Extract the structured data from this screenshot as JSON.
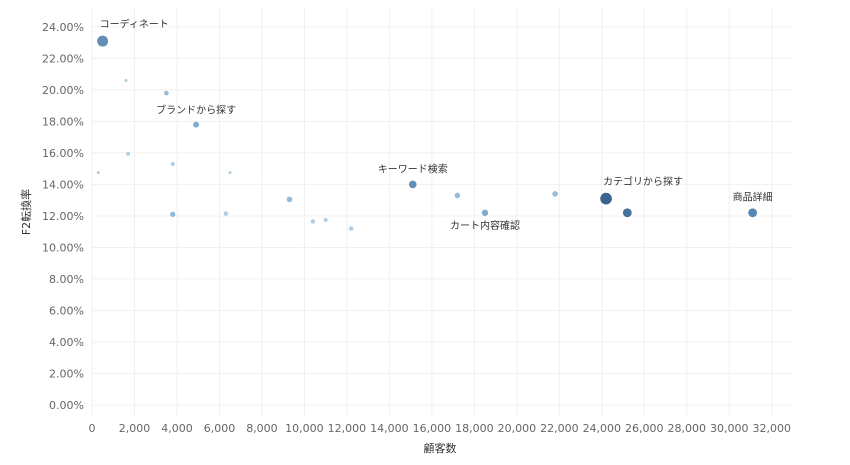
{
  "chart_data": {
    "type": "scatter",
    "xlabel": "顧客数",
    "ylabel": "F2転換率",
    "xlim": [
      0,
      33000
    ],
    "ylim": [
      -0.7,
      25.2
    ],
    "xticks": [
      "0",
      "2,000",
      "4,000",
      "6,000",
      "8,000",
      "10,000",
      "12,000",
      "14,000",
      "16,000",
      "18,000",
      "20,000",
      "22,000",
      "24,000",
      "26,000",
      "28,000",
      "30,000",
      "32,000"
    ],
    "yticks": [
      "0.00%",
      "2.00%",
      "4.00%",
      "6.00%",
      "8.00%",
      "10.00%",
      "12.00%",
      "14.00%",
      "16.00%",
      "18.00%",
      "20.00%",
      "22.00%",
      "24.00%"
    ],
    "grid": true,
    "points": [
      {
        "x": 500,
        "y": 23.1,
        "size": 5.5,
        "color": "#5b89b3",
        "label": "コーディネート",
        "label_pos": "above-right"
      },
      {
        "x": 1600,
        "y": 20.6,
        "size": 1.5,
        "color": "#a9cbe3",
        "label": ""
      },
      {
        "x": 3500,
        "y": 19.8,
        "size": 2.3,
        "color": "#8fb8d9",
        "label": ""
      },
      {
        "x": 4900,
        "y": 17.8,
        "size": 3.0,
        "color": "#7aa7cc",
        "label": "ブランドから探す",
        "label_pos": "above"
      },
      {
        "x": 1700,
        "y": 15.95,
        "size": 2.0,
        "color": "#a9cbe3",
        "label": ""
      },
      {
        "x": 3800,
        "y": 15.3,
        "size": 2.0,
        "color": "#a9cbe3",
        "label": ""
      },
      {
        "x": 300,
        "y": 14.75,
        "size": 1.5,
        "color": "#a9cbe3",
        "label": ""
      },
      {
        "x": 6500,
        "y": 14.75,
        "size": 1.5,
        "color": "#a9cbe3",
        "label": ""
      },
      {
        "x": 3800,
        "y": 12.1,
        "size": 2.7,
        "color": "#8fb8d9",
        "label": ""
      },
      {
        "x": 6300,
        "y": 12.15,
        "size": 2.2,
        "color": "#a9cbe3",
        "label": ""
      },
      {
        "x": 9300,
        "y": 13.05,
        "size": 2.8,
        "color": "#8fb8d9",
        "label": ""
      },
      {
        "x": 10400,
        "y": 11.65,
        "size": 2.2,
        "color": "#a9cbe3",
        "label": ""
      },
      {
        "x": 11000,
        "y": 11.75,
        "size": 2.0,
        "color": "#a9cbe3",
        "label": ""
      },
      {
        "x": 12200,
        "y": 11.2,
        "size": 2.2,
        "color": "#a9cbe3",
        "label": ""
      },
      {
        "x": 15100,
        "y": 14.0,
        "size": 3.8,
        "color": "#5b89b3",
        "label": "キーワード検索",
        "label_pos": "above"
      },
      {
        "x": 17200,
        "y": 13.3,
        "size": 2.8,
        "color": "#8fb8d9",
        "label": ""
      },
      {
        "x": 18500,
        "y": 12.2,
        "size": 3.2,
        "color": "#7aa7cc",
        "label": "カート内容確認",
        "label_pos": "below"
      },
      {
        "x": 21800,
        "y": 13.4,
        "size": 2.8,
        "color": "#8fb8d9",
        "label": ""
      },
      {
        "x": 24200,
        "y": 13.1,
        "size": 5.8,
        "color": "#2e5b8a",
        "label": "カテゴリから探す",
        "label_pos": "above-right"
      },
      {
        "x": 25200,
        "y": 12.2,
        "size": 4.4,
        "color": "#3d6a99",
        "label": ""
      },
      {
        "x": 31100,
        "y": 12.2,
        "size": 4.4,
        "color": "#4e7fae",
        "label": "商品詳細",
        "label_pos": "above"
      }
    ]
  }
}
